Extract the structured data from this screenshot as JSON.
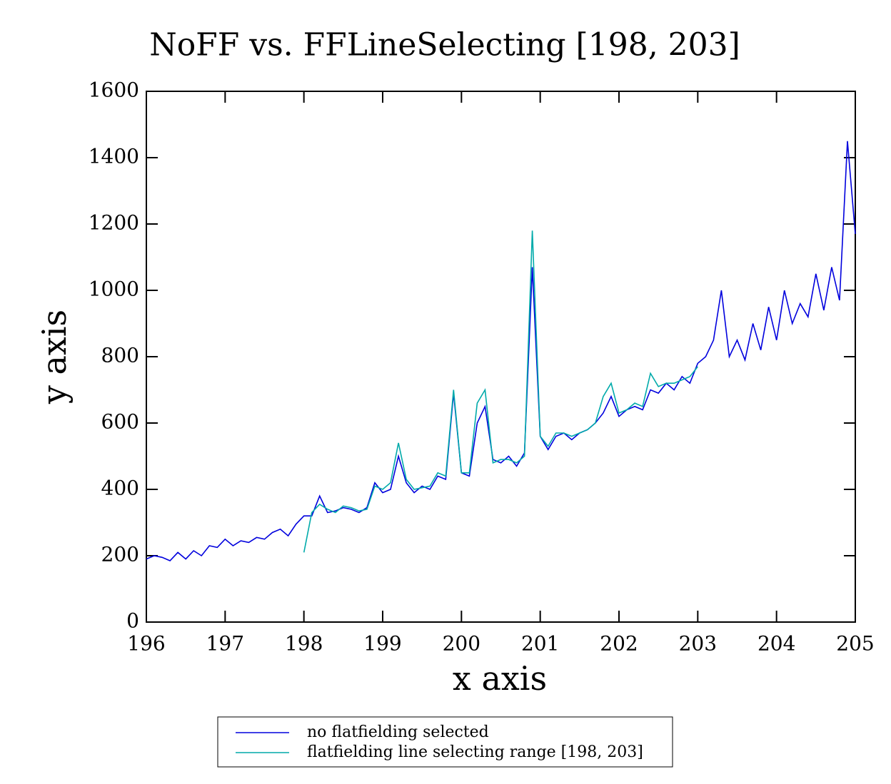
{
  "chart_data": {
    "type": "line",
    "title": "NoFF vs. FFLineSelecting [198, 203]",
    "x_label": "x axis",
    "y_label": "y axis",
    "x": [
      196.0,
      196.1,
      196.2,
      196.3,
      196.4,
      196.5,
      196.6,
      196.7,
      196.8,
      196.9,
      197.0,
      197.1,
      197.2,
      197.3,
      197.4,
      197.5,
      197.6,
      197.7,
      197.8,
      197.9,
      198.0,
      198.1,
      198.2,
      198.3,
      198.4,
      198.5,
      198.6,
      198.7,
      198.8,
      198.9,
      199.0,
      199.1,
      199.2,
      199.3,
      199.4,
      199.5,
      199.6,
      199.7,
      199.8,
      199.9,
      200.0,
      200.1,
      200.2,
      200.3,
      200.4,
      200.5,
      200.6,
      200.7,
      200.8,
      200.9,
      201.0,
      201.1,
      201.2,
      201.3,
      201.4,
      201.5,
      201.6,
      201.7,
      201.8,
      201.9,
      202.0,
      202.1,
      202.2,
      202.3,
      202.4,
      202.5,
      202.6,
      202.7,
      202.8,
      202.9,
      203.0,
      203.1,
      203.2,
      203.3,
      203.4,
      203.5,
      203.6,
      203.7,
      203.8,
      203.9,
      204.0,
      204.1,
      204.2,
      204.3,
      204.4,
      204.5,
      204.6,
      204.7,
      204.8,
      204.9,
      205.0
    ],
    "series": [
      {
        "name": "no flatfielding selected",
        "color": "#0000dd",
        "values": [
          190,
          200,
          195,
          185,
          210,
          190,
          215,
          200,
          230,
          225,
          250,
          230,
          245,
          240,
          255,
          250,
          270,
          280,
          260,
          295,
          320,
          320,
          380,
          330,
          335,
          345,
          340,
          330,
          345,
          420,
          390,
          400,
          500,
          420,
          390,
          410,
          400,
          440,
          430,
          690,
          450,
          440,
          600,
          650,
          490,
          480,
          500,
          470,
          510,
          1070,
          560,
          520,
          560,
          570,
          550,
          570,
          580,
          600,
          630,
          680,
          620,
          640,
          650,
          640,
          700,
          690,
          720,
          700,
          740,
          720,
          780,
          800,
          850,
          1000,
          800,
          850,
          790,
          900,
          820,
          950,
          850,
          1000,
          900,
          960,
          920,
          1050,
          940,
          1070,
          970,
          1450,
          1170
        ]
      },
      {
        "name": "flatfielding line selecting range [198, 203]",
        "color": "#00aaaa",
        "values": [
          null,
          null,
          null,
          null,
          null,
          null,
          null,
          null,
          null,
          null,
          null,
          null,
          null,
          null,
          null,
          null,
          null,
          null,
          null,
          null,
          210,
          330,
          355,
          340,
          330,
          350,
          345,
          335,
          340,
          410,
          400,
          420,
          540,
          430,
          400,
          405,
          410,
          450,
          440,
          700,
          450,
          450,
          660,
          700,
          480,
          490,
          490,
          480,
          500,
          1180,
          560,
          530,
          570,
          570,
          560,
          570,
          580,
          600,
          680,
          720,
          630,
          640,
          660,
          650,
          750,
          710,
          720,
          720,
          730,
          740,
          770,
          null,
          null,
          null,
          null,
          null,
          null,
          null,
          null,
          null,
          null,
          null,
          null,
          null,
          null,
          null,
          null,
          null,
          null,
          null,
          null
        ]
      }
    ],
    "xlim": [
      196,
      205
    ],
    "xticks": [
      196,
      197,
      198,
      199,
      200,
      201,
      202,
      203,
      204,
      205
    ],
    "ylim": [
      0,
      1600
    ],
    "yticks": [
      0,
      200,
      400,
      600,
      800,
      1000,
      1200,
      1400,
      1600
    ],
    "grid": false,
    "legend": "bottom"
  }
}
